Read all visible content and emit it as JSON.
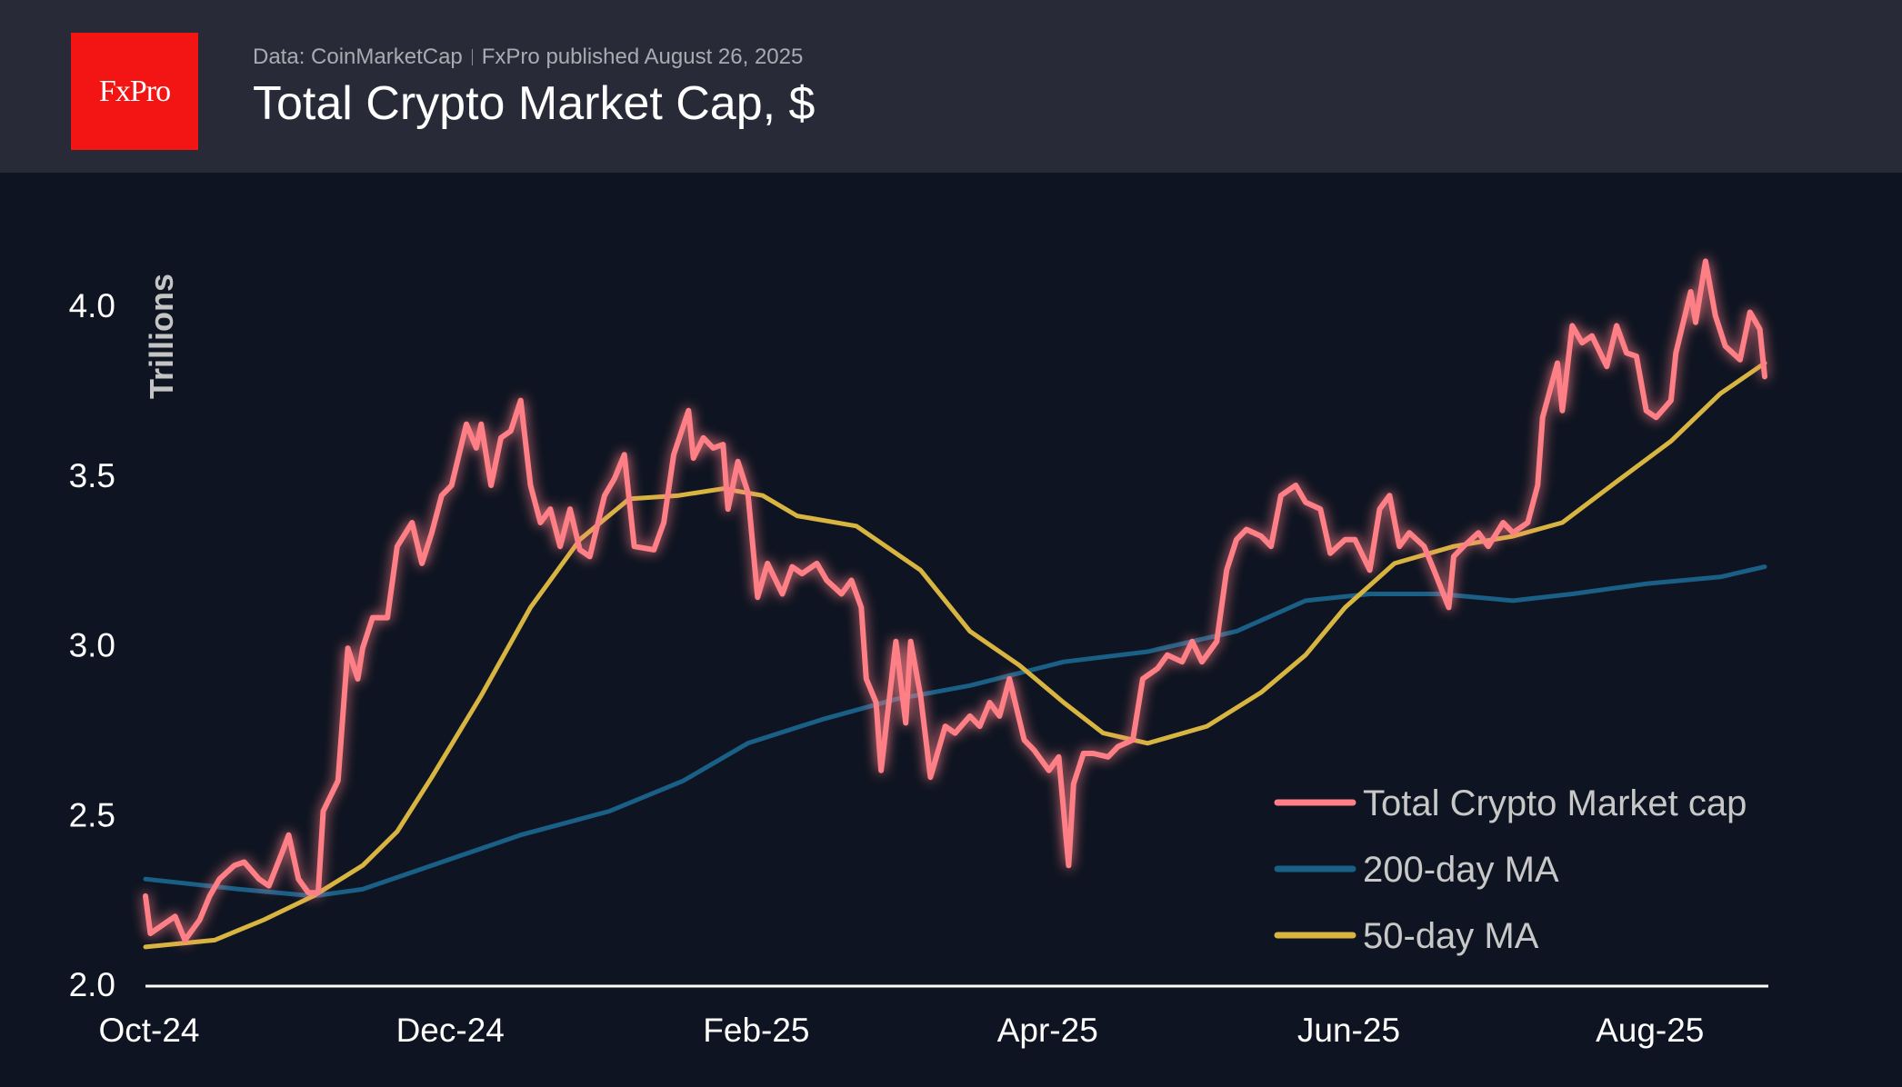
{
  "header": {
    "logo_text": "FxPro",
    "source": "Data: CoinMarketCap",
    "published": "FxPro published August 26, 2025",
    "title": "Total Crypto Market Cap, $"
  },
  "colors": {
    "total": "#ff7f86",
    "ma200": "#1a5f86",
    "ma50": "#d8b440",
    "background": "#0e1421",
    "header": "#282a37",
    "logo": "#f31414"
  },
  "chart_data": {
    "type": "line",
    "title": "Total Crypto Market Cap, $",
    "xlabel": "",
    "ylabel": "Trillions",
    "ylim": [
      2.0,
      4.2
    ],
    "xlim": [
      "2024-10-01",
      "2025-08-25"
    ],
    "yticks": [
      "2.0",
      "2.5",
      "3.0",
      "3.5",
      "4.0"
    ],
    "xticks": [
      {
        "date": "2024-10-01",
        "label": "Oct-24"
      },
      {
        "date": "2024-12-01",
        "label": "Dec-24"
      },
      {
        "date": "2025-02-01",
        "label": "Feb-25"
      },
      {
        "date": "2025-04-01",
        "label": "Apr-25"
      },
      {
        "date": "2025-06-01",
        "label": "Jun-25"
      },
      {
        "date": "2025-08-01",
        "label": "Aug-25"
      }
    ],
    "grid": false,
    "legend_position": "bottom-right",
    "series": [
      {
        "name": "Total Crypto Market cap",
        "key": "total",
        "points": [
          [
            "2024-10-01",
            2.26
          ],
          [
            "2024-10-02",
            2.15
          ],
          [
            "2024-10-04",
            2.17
          ],
          [
            "2024-10-07",
            2.2
          ],
          [
            "2024-10-09",
            2.13
          ],
          [
            "2024-10-12",
            2.19
          ],
          [
            "2024-10-14",
            2.26
          ],
          [
            "2024-10-16",
            2.31
          ],
          [
            "2024-10-19",
            2.35
          ],
          [
            "2024-10-21",
            2.36
          ],
          [
            "2024-10-24",
            2.31
          ],
          [
            "2024-10-26",
            2.29
          ],
          [
            "2024-10-29",
            2.4
          ],
          [
            "2024-10-30",
            2.44
          ],
          [
            "2024-11-01",
            2.31
          ],
          [
            "2024-11-03",
            2.27
          ],
          [
            "2024-11-05",
            2.27
          ],
          [
            "2024-11-06",
            2.51
          ],
          [
            "2024-11-09",
            2.6
          ],
          [
            "2024-11-11",
            2.99
          ],
          [
            "2024-11-13",
            2.9
          ],
          [
            "2024-11-14",
            2.99
          ],
          [
            "2024-11-16",
            3.08
          ],
          [
            "2024-11-19",
            3.08
          ],
          [
            "2024-11-21",
            3.29
          ],
          [
            "2024-11-24",
            3.36
          ],
          [
            "2024-11-26",
            3.24
          ],
          [
            "2024-11-28",
            3.33
          ],
          [
            "2024-11-30",
            3.44
          ],
          [
            "2024-12-02",
            3.47
          ],
          [
            "2024-12-05",
            3.65
          ],
          [
            "2024-12-07",
            3.58
          ],
          [
            "2024-12-08",
            3.65
          ],
          [
            "2024-12-10",
            3.47
          ],
          [
            "2024-12-12",
            3.61
          ],
          [
            "2024-12-14",
            3.63
          ],
          [
            "2024-12-16",
            3.72
          ],
          [
            "2024-12-18",
            3.47
          ],
          [
            "2024-12-20",
            3.36
          ],
          [
            "2024-12-22",
            3.4
          ],
          [
            "2024-12-24",
            3.29
          ],
          [
            "2024-12-26",
            3.4
          ],
          [
            "2024-12-28",
            3.28
          ],
          [
            "2024-12-30",
            3.26
          ],
          [
            "2025-01-02",
            3.44
          ],
          [
            "2025-01-04",
            3.49
          ],
          [
            "2025-01-06",
            3.56
          ],
          [
            "2025-01-08",
            3.29
          ],
          [
            "2025-01-12",
            3.28
          ],
          [
            "2025-01-14",
            3.36
          ],
          [
            "2025-01-16",
            3.56
          ],
          [
            "2025-01-19",
            3.69
          ],
          [
            "2025-01-20",
            3.55
          ],
          [
            "2025-01-22",
            3.61
          ],
          [
            "2025-01-24",
            3.58
          ],
          [
            "2025-01-26",
            3.59
          ],
          [
            "2025-01-27",
            3.4
          ],
          [
            "2025-01-29",
            3.54
          ],
          [
            "2025-01-31",
            3.45
          ],
          [
            "2025-02-02",
            3.14
          ],
          [
            "2025-02-04",
            3.24
          ],
          [
            "2025-02-07",
            3.15
          ],
          [
            "2025-02-09",
            3.23
          ],
          [
            "2025-02-11",
            3.21
          ],
          [
            "2025-02-14",
            3.24
          ],
          [
            "2025-02-16",
            3.19
          ],
          [
            "2025-02-19",
            3.15
          ],
          [
            "2025-02-21",
            3.19
          ],
          [
            "2025-02-23",
            3.11
          ],
          [
            "2025-02-24",
            2.9
          ],
          [
            "2025-02-26",
            2.83
          ],
          [
            "2025-02-27",
            2.63
          ],
          [
            "2025-03-02",
            3.01
          ],
          [
            "2025-03-04",
            2.77
          ],
          [
            "2025-03-05",
            3.01
          ],
          [
            "2025-03-07",
            2.85
          ],
          [
            "2025-03-09",
            2.61
          ],
          [
            "2025-03-12",
            2.76
          ],
          [
            "2025-03-14",
            2.74
          ],
          [
            "2025-03-17",
            2.79
          ],
          [
            "2025-03-19",
            2.76
          ],
          [
            "2025-03-21",
            2.83
          ],
          [
            "2025-03-23",
            2.79
          ],
          [
            "2025-03-25",
            2.9
          ],
          [
            "2025-03-28",
            2.72
          ],
          [
            "2025-03-30",
            2.69
          ],
          [
            "2025-04-02",
            2.63
          ],
          [
            "2025-04-04",
            2.67
          ],
          [
            "2025-04-06",
            2.35
          ],
          [
            "2025-04-07",
            2.59
          ],
          [
            "2025-04-09",
            2.68
          ],
          [
            "2025-04-11",
            2.68
          ],
          [
            "2025-04-14",
            2.67
          ],
          [
            "2025-04-16",
            2.7
          ],
          [
            "2025-04-19",
            2.72
          ],
          [
            "2025-04-21",
            2.9
          ],
          [
            "2025-04-24",
            2.93
          ],
          [
            "2025-04-26",
            2.97
          ],
          [
            "2025-04-29",
            2.95
          ],
          [
            "2025-05-01",
            3.01
          ],
          [
            "2025-05-03",
            2.95
          ],
          [
            "2025-05-06",
            3.01
          ],
          [
            "2025-05-08",
            3.22
          ],
          [
            "2025-05-10",
            3.31
          ],
          [
            "2025-05-12",
            3.34
          ],
          [
            "2025-05-15",
            3.32
          ],
          [
            "2025-05-17",
            3.29
          ],
          [
            "2025-05-19",
            3.44
          ],
          [
            "2025-05-22",
            3.47
          ],
          [
            "2025-05-24",
            3.42
          ],
          [
            "2025-05-27",
            3.4
          ],
          [
            "2025-05-29",
            3.27
          ],
          [
            "2025-06-01",
            3.31
          ],
          [
            "2025-06-03",
            3.31
          ],
          [
            "2025-06-06",
            3.22
          ],
          [
            "2025-06-08",
            3.4
          ],
          [
            "2025-06-10",
            3.44
          ],
          [
            "2025-06-12",
            3.29
          ],
          [
            "2025-06-14",
            3.33
          ],
          [
            "2025-06-17",
            3.29
          ],
          [
            "2025-06-19",
            3.22
          ],
          [
            "2025-06-22",
            3.11
          ],
          [
            "2025-06-23",
            3.26
          ],
          [
            "2025-06-25",
            3.29
          ],
          [
            "2025-06-28",
            3.33
          ],
          [
            "2025-06-30",
            3.29
          ],
          [
            "2025-07-03",
            3.36
          ],
          [
            "2025-07-05",
            3.33
          ],
          [
            "2025-07-08",
            3.36
          ],
          [
            "2025-07-10",
            3.47
          ],
          [
            "2025-07-11",
            3.67
          ],
          [
            "2025-07-14",
            3.83
          ],
          [
            "2025-07-15",
            3.69
          ],
          [
            "2025-07-17",
            3.94
          ],
          [
            "2025-07-19",
            3.89
          ],
          [
            "2025-07-21",
            3.91
          ],
          [
            "2025-07-24",
            3.82
          ],
          [
            "2025-07-26",
            3.94
          ],
          [
            "2025-07-28",
            3.86
          ],
          [
            "2025-07-30",
            3.85
          ],
          [
            "2025-08-01",
            3.69
          ],
          [
            "2025-08-03",
            3.67
          ],
          [
            "2025-08-06",
            3.72
          ],
          [
            "2025-08-07",
            3.86
          ],
          [
            "2025-08-10",
            4.04
          ],
          [
            "2025-08-11",
            3.95
          ],
          [
            "2025-08-13",
            4.13
          ],
          [
            "2025-08-15",
            3.97
          ],
          [
            "2025-08-17",
            3.88
          ],
          [
            "2025-08-20",
            3.84
          ],
          [
            "2025-08-22",
            3.98
          ],
          [
            "2025-08-24",
            3.93
          ],
          [
            "2025-08-25",
            3.79
          ]
        ]
      },
      {
        "name": "200-day MA",
        "key": "ma200",
        "points": [
          [
            "2024-10-01",
            2.31
          ],
          [
            "2024-10-20",
            2.28
          ],
          [
            "2024-11-04",
            2.26
          ],
          [
            "2024-11-14",
            2.28
          ],
          [
            "2024-11-26",
            2.34
          ],
          [
            "2024-12-16",
            2.44
          ],
          [
            "2025-01-03",
            2.51
          ],
          [
            "2025-01-18",
            2.6
          ],
          [
            "2025-01-31",
            2.71
          ],
          [
            "2025-02-15",
            2.78
          ],
          [
            "2025-03-02",
            2.84
          ],
          [
            "2025-03-17",
            2.88
          ],
          [
            "2025-04-05",
            2.95
          ],
          [
            "2025-04-22",
            2.98
          ],
          [
            "2025-05-10",
            3.04
          ],
          [
            "2025-05-24",
            3.13
          ],
          [
            "2025-06-06",
            3.15
          ],
          [
            "2025-06-20",
            3.15
          ],
          [
            "2025-07-05",
            3.13
          ],
          [
            "2025-07-17",
            3.15
          ],
          [
            "2025-08-01",
            3.18
          ],
          [
            "2025-08-16",
            3.2
          ],
          [
            "2025-08-25",
            3.23
          ]
        ]
      },
      {
        "name": "50-day MA",
        "key": "ma50",
        "points": [
          [
            "2024-10-01",
            2.11
          ],
          [
            "2024-10-15",
            2.13
          ],
          [
            "2024-10-25",
            2.19
          ],
          [
            "2024-11-04",
            2.26
          ],
          [
            "2024-11-14",
            2.35
          ],
          [
            "2024-11-21",
            2.45
          ],
          [
            "2024-11-28",
            2.61
          ],
          [
            "2024-12-08",
            2.85
          ],
          [
            "2024-12-18",
            3.11
          ],
          [
            "2024-12-28",
            3.31
          ],
          [
            "2025-01-07",
            3.43
          ],
          [
            "2025-01-17",
            3.44
          ],
          [
            "2025-01-26",
            3.46
          ],
          [
            "2025-02-03",
            3.44
          ],
          [
            "2025-02-10",
            3.38
          ],
          [
            "2025-02-22",
            3.35
          ],
          [
            "2025-03-07",
            3.22
          ],
          [
            "2025-03-17",
            3.04
          ],
          [
            "2025-03-27",
            2.94
          ],
          [
            "2025-04-05",
            2.83
          ],
          [
            "2025-04-13",
            2.74
          ],
          [
            "2025-04-22",
            2.71
          ],
          [
            "2025-05-04",
            2.76
          ],
          [
            "2025-05-15",
            2.86
          ],
          [
            "2025-05-24",
            2.97
          ],
          [
            "2025-06-01",
            3.11
          ],
          [
            "2025-06-11",
            3.24
          ],
          [
            "2025-06-23",
            3.29
          ],
          [
            "2025-07-05",
            3.32
          ],
          [
            "2025-07-15",
            3.36
          ],
          [
            "2025-07-25",
            3.47
          ],
          [
            "2025-08-06",
            3.6
          ],
          [
            "2025-08-16",
            3.74
          ],
          [
            "2025-08-25",
            3.83
          ]
        ]
      }
    ]
  }
}
